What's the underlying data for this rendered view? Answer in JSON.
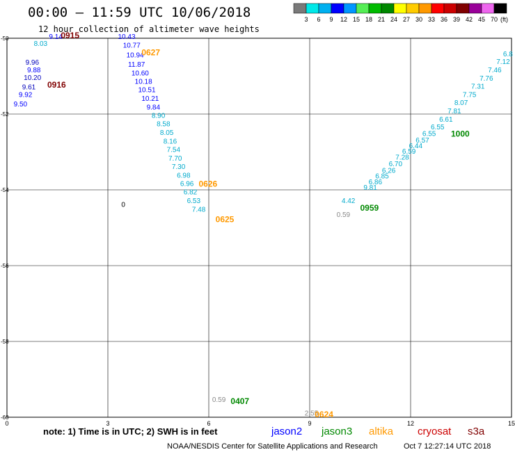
{
  "header": {
    "title": "00:00 – 11:59 UTC 10/06/2018",
    "subtitle": "12 hour collection of altimeter wave heights"
  },
  "colorbar": {
    "labels": [
      "3",
      "6",
      "9",
      "12",
      "15",
      "18",
      "21",
      "24",
      "27",
      "30",
      "33",
      "36",
      "39",
      "42",
      "45",
      "70"
    ],
    "unit": "(ft)",
    "colors": [
      "#7a7a7a",
      "#00e8e8",
      "#00b0f0",
      "#0000ff",
      "#0096ff",
      "#55ee55",
      "#00bb00",
      "#008800",
      "#ffff00",
      "#ffcc00",
      "#ff9900",
      "#ff0000",
      "#cc0000",
      "#800000",
      "#990099",
      "#ee66ee",
      "#000000"
    ]
  },
  "footer": {
    "note": "note: 1) Time is in UTC; 2) SWH is in feet",
    "satellites": [
      {
        "name": "jason2",
        "color": "#0000ff"
      },
      {
        "name": "jason3",
        "color": "#008800"
      },
      {
        "name": "altika",
        "color": "#ff9900"
      },
      {
        "name": "cryosat",
        "color": "#cc0000"
      },
      {
        "name": "s3a",
        "color": "#800000"
      }
    ],
    "credit": "NOAA/NESDIS Center for Satellite Applications and Research",
    "timestamp": "Oct  7 12:27:14 UTC 2018"
  },
  "chart_data": {
    "type": "scatter",
    "xlim": [
      0,
      15
    ],
    "ylim": [
      -60,
      -50
    ],
    "x_ticks": [
      "0",
      "3",
      "6",
      "9",
      "12",
      "15"
    ],
    "y_ticks": [
      "-50",
      "-52",
      "-54",
      "-56",
      "-58",
      "-60"
    ],
    "grid": true,
    "contour": {
      "x": 3.4,
      "y": -54.45,
      "label": "0"
    },
    "series": [
      {
        "name": "jason2",
        "color": "#0000ff",
        "points": [
          {
            "x": 1.25,
            "y": -50.02,
            "v": "9.14"
          },
          {
            "x": 0.6,
            "y": -50.9,
            "v": "9.88"
          },
          {
            "x": 0.35,
            "y": -51.55,
            "v": "9.92"
          },
          {
            "x": 0.2,
            "y": -51.8,
            "v": "9.50"
          },
          {
            "x": 3.3,
            "y": -50.02,
            "v": "10.43"
          },
          {
            "x": 3.45,
            "y": -50.25,
            "v": "10.77"
          },
          {
            "x": 3.55,
            "y": -50.5,
            "v": "10.94"
          },
          {
            "x": 3.6,
            "y": -50.75,
            "v": "11.87"
          },
          {
            "x": 3.7,
            "y": -50.98,
            "v": "10.60"
          },
          {
            "x": 3.8,
            "y": -51.2,
            "v": "10.18"
          },
          {
            "x": 3.9,
            "y": -51.42,
            "v": "10.51"
          },
          {
            "x": 4.0,
            "y": -51.65,
            "v": "10.21"
          },
          {
            "x": 4.15,
            "y": -51.88,
            "v": "9.84"
          }
        ]
      },
      {
        "name": "jason3",
        "color": "#008800",
        "points": []
      },
      {
        "name": "altika",
        "color": "#ff9900",
        "points": []
      },
      {
        "name": "cryosat",
        "color": "#cc0000",
        "points": []
      },
      {
        "name": "s3a",
        "color": "#800000",
        "points": []
      },
      {
        "name": "",
        "color": "#00aacc",
        "points": [
          {
            "x": 0.8,
            "y": -50.2,
            "v": "8.03"
          },
          {
            "x": 4.3,
            "y": -52.1,
            "v": "8.90"
          },
          {
            "x": 4.45,
            "y": -52.32,
            "v": "8.58"
          },
          {
            "x": 4.55,
            "y": -52.55,
            "v": "8.05"
          },
          {
            "x": 4.65,
            "y": -52.78,
            "v": "8.16"
          },
          {
            "x": 4.75,
            "y": -53.0,
            "v": "7.54"
          },
          {
            "x": 4.8,
            "y": -53.23,
            "v": "7.70"
          },
          {
            "x": 4.9,
            "y": -53.45,
            "v": "7.30"
          },
          {
            "x": 5.05,
            "y": -53.68,
            "v": "6.98"
          },
          {
            "x": 5.15,
            "y": -53.9,
            "v": "6.96"
          },
          {
            "x": 5.25,
            "y": -54.12,
            "v": "6.82"
          },
          {
            "x": 5.35,
            "y": -54.35,
            "v": "6.53"
          },
          {
            "x": 5.5,
            "y": -54.58,
            "v": "7.48"
          },
          {
            "x": 9.95,
            "y": -54.35,
            "v": "4.42"
          },
          {
            "x": 10.6,
            "y": -54.0,
            "v": "9.81"
          },
          {
            "x": 10.75,
            "y": -53.85,
            "v": "6.86"
          },
          {
            "x": 10.95,
            "y": -53.7,
            "v": "6.85"
          },
          {
            "x": 11.15,
            "y": -53.55,
            "v": "6.26"
          },
          {
            "x": 11.35,
            "y": -53.38,
            "v": "6.70"
          },
          {
            "x": 11.55,
            "y": -53.2,
            "v": "7.28"
          },
          {
            "x": 11.75,
            "y": -53.05,
            "v": "6.59"
          },
          {
            "x": 11.95,
            "y": -52.9,
            "v": "6.44"
          },
          {
            "x": 12.15,
            "y": -52.75,
            "v": "6.57"
          },
          {
            "x": 12.35,
            "y": -52.58,
            "v": "6.55"
          },
          {
            "x": 12.6,
            "y": -52.4,
            "v": "6.55"
          },
          {
            "x": 12.85,
            "y": -52.2,
            "v": "6.61"
          },
          {
            "x": 13.1,
            "y": -51.98,
            "v": "7.81"
          },
          {
            "x": 13.3,
            "y": -51.76,
            "v": "8.07"
          },
          {
            "x": 13.55,
            "y": -51.55,
            "v": "7.75"
          },
          {
            "x": 13.8,
            "y": -51.33,
            "v": "7.31"
          },
          {
            "x": 14.05,
            "y": -51.12,
            "v": "7.76"
          },
          {
            "x": 14.3,
            "y": -50.9,
            "v": "7.46"
          },
          {
            "x": 14.55,
            "y": -50.68,
            "v": "7.12"
          },
          {
            "x": 14.75,
            "y": -50.48,
            "v": "6.8"
          }
        ]
      },
      {
        "name": "",
        "color": "#0000bb",
        "points": [
          {
            "x": 0.55,
            "y": -50.7,
            "v": "9.96"
          },
          {
            "x": 0.5,
            "y": -51.1,
            "v": "10.20"
          },
          {
            "x": 0.45,
            "y": -51.35,
            "v": "9.61"
          }
        ]
      },
      {
        "name": "",
        "color": "#888888",
        "points": [
          {
            "x": 9.8,
            "y": -54.72,
            "v": "0.59"
          },
          {
            "x": 6.1,
            "y": -59.6,
            "v": "0.59"
          },
          {
            "x": 8.85,
            "y": -59.95,
            "v": "2.55"
          }
        ]
      }
    ],
    "pass_labels": [
      {
        "x": 1.6,
        "y": -50.0,
        "text": "0915",
        "color": "#800000"
      },
      {
        "x": 1.2,
        "y": -51.3,
        "text": "0916",
        "color": "#800000"
      },
      {
        "x": 4.0,
        "y": -50.45,
        "text": "0627",
        "color": "#ff9900"
      },
      {
        "x": 5.7,
        "y": -53.92,
        "text": "0626",
        "color": "#ff9900"
      },
      {
        "x": 6.2,
        "y": -54.85,
        "text": "0625",
        "color": "#ff9900"
      },
      {
        "x": 10.5,
        "y": -54.55,
        "text": "0959",
        "color": "#008800"
      },
      {
        "x": 13.2,
        "y": -52.6,
        "text": "1000",
        "color": "#008800"
      },
      {
        "x": 6.65,
        "y": -59.65,
        "text": "0407",
        "color": "#008800"
      },
      {
        "x": 9.15,
        "y": -60.0,
        "text": "0624",
        "color": "#ff9900"
      }
    ]
  }
}
